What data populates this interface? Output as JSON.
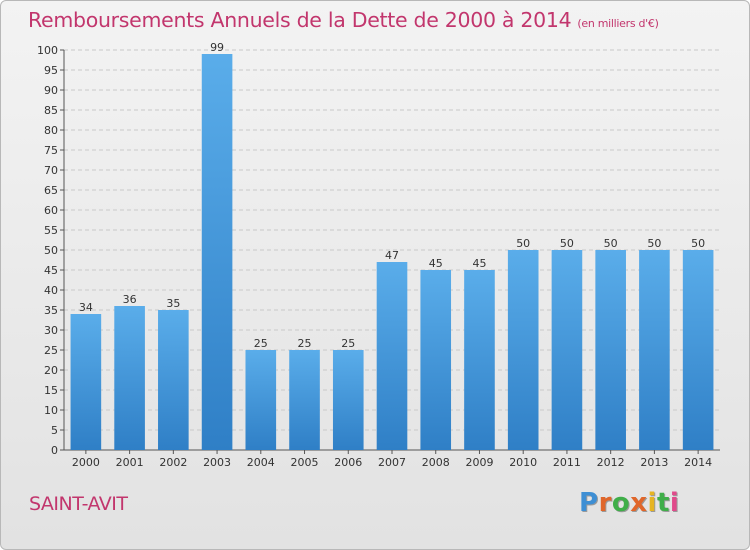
{
  "header": {
    "title": "Remboursements Annuels de la Dette de 2000 à 2014",
    "subtitle": "(en milliers d'€)"
  },
  "footer": {
    "commune": "SAINT-AVIT",
    "logo_text": "Proxiti",
    "logo_colors": [
      "#3e8fd4",
      "#e0662a",
      "#3fae49",
      "#e0662a",
      "#e6b422",
      "#3fae49",
      "#e04a8a"
    ]
  },
  "colors": {
    "bar": "#3f8fd6",
    "bar_top": "#5aadea",
    "title": "#c2366d",
    "grid": "#c9c9c9"
  },
  "chart_data": {
    "type": "bar",
    "title": "Remboursements Annuels de la Dette de 2000 à 2014",
    "subtitle": "(en milliers d'€)",
    "categories": [
      "2000",
      "2001",
      "2002",
      "2003",
      "2004",
      "2005",
      "2006",
      "2007",
      "2008",
      "2009",
      "2010",
      "2011",
      "2012",
      "2013",
      "2014"
    ],
    "values": [
      34,
      36,
      35,
      99,
      25,
      25,
      25,
      47,
      45,
      45,
      50,
      50,
      50,
      50,
      50
    ],
    "ylim": [
      0,
      100
    ],
    "yticks": [
      0,
      5,
      10,
      15,
      20,
      25,
      30,
      35,
      40,
      45,
      50,
      55,
      60,
      65,
      70,
      75,
      80,
      85,
      90,
      95,
      100
    ],
    "grid": true,
    "data_labels": true
  }
}
